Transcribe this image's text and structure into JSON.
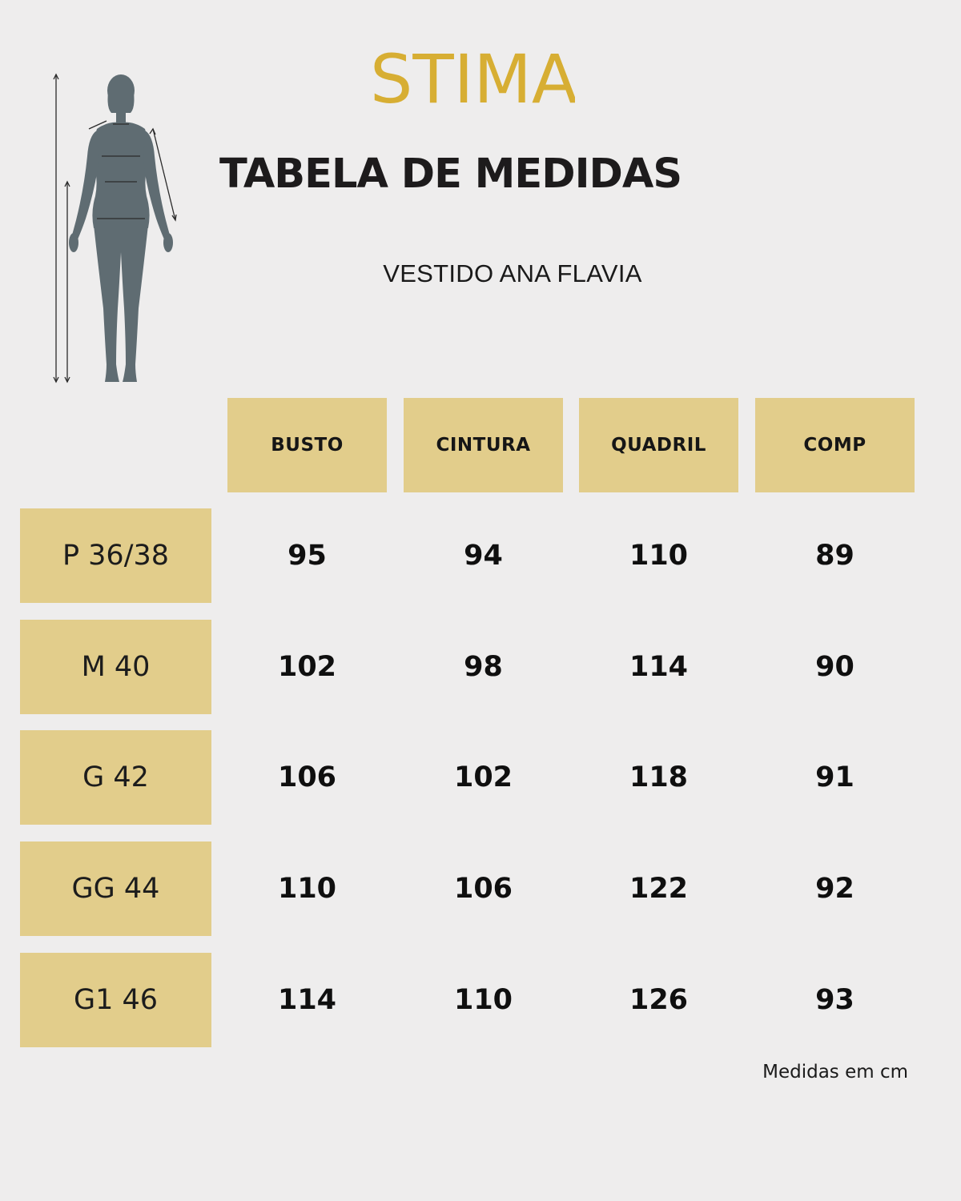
{
  "brand": {
    "name": "STIMA",
    "color": "#d7ae33"
  },
  "title": "TABELA DE MEDIDAS",
  "product_name": "VESTIDO ANA FLAVIA",
  "colors": {
    "background": "#eeeded",
    "cell_fill": "#e2cd8b",
    "figure": "#5f6c72"
  },
  "table": {
    "columns": [
      "BUSTO",
      "CINTURA",
      "QUADRIL",
      "COMP"
    ],
    "rows": [
      {
        "size": "P 36/38",
        "values": [
          "95",
          "94",
          "110",
          "89"
        ]
      },
      {
        "size": "M 40",
        "values": [
          "102",
          "98",
          "114",
          "90"
        ]
      },
      {
        "size": "G 42",
        "values": [
          "106",
          "102",
          "118",
          "91"
        ]
      },
      {
        "size": "GG 44",
        "values": [
          "110",
          "106",
          "122",
          "92"
        ]
      },
      {
        "size": "G1 46",
        "values": [
          "114",
          "110",
          "126",
          "93"
        ]
      }
    ]
  },
  "footnote": "Medidas em cm",
  "icons": {
    "figure": "body-silhouette-measurement-icon"
  }
}
